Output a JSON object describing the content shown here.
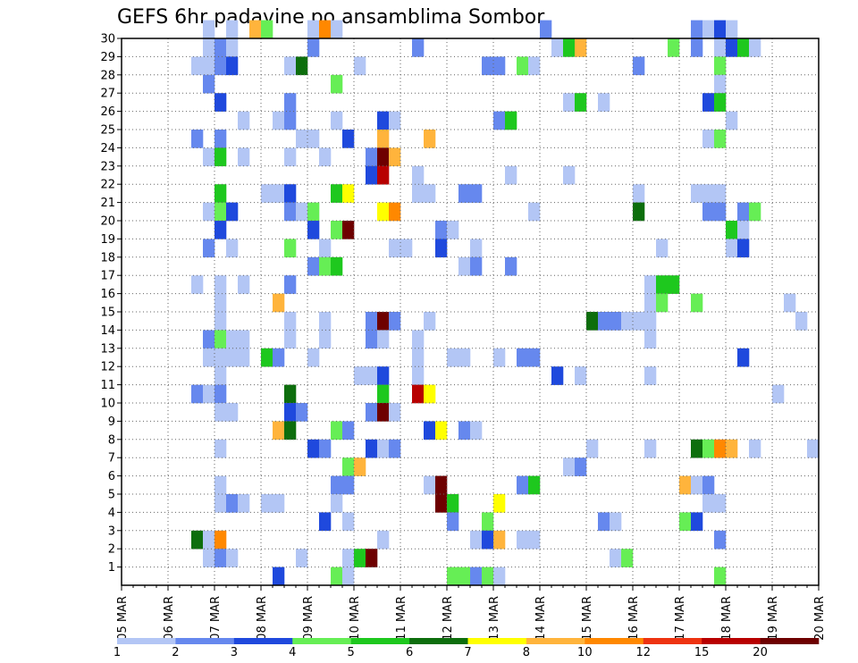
{
  "chart_data": {
    "type": "heatmap",
    "title": "GEFS 6hr padavine po ansamblima Sombor",
    "x_tick_labels": [
      "05 MAR",
      "06 MAR",
      "07 MAR",
      "08 MAR",
      "09 MAR",
      "10 MAR",
      "11 MAR",
      "12 MAR",
      "13 MAR",
      "14 MAR",
      "15 MAR",
      "16 MAR",
      "17 MAR",
      "18 MAR",
      "19 MAR",
      "20 MAR"
    ],
    "y_tick_labels": [
      "1",
      "2",
      "3",
      "4",
      "5",
      "6",
      "7",
      "8",
      "9",
      "10",
      "11",
      "12",
      "13",
      "14",
      "15",
      "16",
      "17",
      "18",
      "19",
      "20",
      "21",
      "22",
      "23",
      "24",
      "25",
      "26",
      "27",
      "28",
      "29",
      "30"
    ],
    "xlim": [
      0,
      60
    ],
    "ylim": [
      0,
      30
    ],
    "grid": true,
    "colorbar": {
      "labels": [
        "1",
        "2",
        "3",
        "4",
        "5",
        "6",
        "7",
        "8",
        "10",
        "12",
        "15",
        "20"
      ],
      "colors": [
        "#b3c6f5",
        "#6688ee",
        "#1f49dd",
        "#66ee55",
        "#1ec81e",
        "#0d6e0d",
        "#ffff00",
        "#ffb43c",
        "#ff8800",
        "#ee3311",
        "#b80000",
        "#6e0000"
      ]
    },
    "cells": [
      [
        7,
        30,
        0
      ],
      [
        9,
        30,
        0
      ],
      [
        11,
        30,
        7
      ],
      [
        12,
        30,
        3
      ],
      [
        16,
        30,
        0
      ],
      [
        17,
        30,
        8
      ],
      [
        18,
        30,
        0
      ],
      [
        36,
        30,
        1
      ],
      [
        49,
        30,
        1
      ],
      [
        50,
        30,
        0
      ],
      [
        51,
        30,
        2
      ],
      [
        52,
        30,
        0
      ],
      [
        7,
        29,
        0
      ],
      [
        8,
        29,
        1
      ],
      [
        9,
        29,
        0
      ],
      [
        16,
        29,
        1
      ],
      [
        25,
        29,
        1
      ],
      [
        37,
        29,
        0
      ],
      [
        38,
        29,
        4
      ],
      [
        39,
        29,
        7
      ],
      [
        47,
        29,
        3
      ],
      [
        49,
        29,
        1
      ],
      [
        51,
        29,
        0
      ],
      [
        52,
        29,
        2
      ],
      [
        53,
        29,
        4
      ],
      [
        54,
        29,
        0
      ],
      [
        6,
        28,
        0
      ],
      [
        7,
        28,
        0
      ],
      [
        8,
        28,
        1
      ],
      [
        9,
        28,
        2
      ],
      [
        14,
        28,
        0
      ],
      [
        15,
        28,
        5
      ],
      [
        20,
        28,
        0
      ],
      [
        31,
        28,
        1
      ],
      [
        32,
        28,
        1
      ],
      [
        34,
        28,
        3
      ],
      [
        35,
        28,
        0
      ],
      [
        44,
        28,
        1
      ],
      [
        51,
        28,
        3
      ],
      [
        7,
        27,
        1
      ],
      [
        18,
        27,
        3
      ],
      [
        51,
        27,
        0
      ],
      [
        8,
        26,
        2
      ],
      [
        14,
        26,
        1
      ],
      [
        38,
        26,
        0
      ],
      [
        39,
        26,
        4
      ],
      [
        41,
        26,
        0
      ],
      [
        50,
        26,
        2
      ],
      [
        51,
        26,
        4
      ],
      [
        10,
        25,
        0
      ],
      [
        13,
        25,
        0
      ],
      [
        14,
        25,
        1
      ],
      [
        18,
        25,
        0
      ],
      [
        22,
        25,
        2
      ],
      [
        23,
        25,
        0
      ],
      [
        32,
        25,
        1
      ],
      [
        33,
        25,
        4
      ],
      [
        52,
        25,
        0
      ],
      [
        6,
        24,
        1
      ],
      [
        8,
        24,
        1
      ],
      [
        15,
        24,
        0
      ],
      [
        16,
        24,
        0
      ],
      [
        19,
        24,
        2
      ],
      [
        22,
        24,
        7
      ],
      [
        26,
        24,
        7
      ],
      [
        50,
        24,
        0
      ],
      [
        51,
        24,
        3
      ],
      [
        7,
        23,
        0
      ],
      [
        8,
        23,
        4
      ],
      [
        10,
        23,
        0
      ],
      [
        14,
        23,
        0
      ],
      [
        17,
        23,
        0
      ],
      [
        21,
        23,
        1
      ],
      [
        22,
        23,
        11
      ],
      [
        23,
        23,
        7
      ],
      [
        21,
        22,
        2
      ],
      [
        22,
        22,
        10
      ],
      [
        25,
        22,
        0
      ],
      [
        33,
        22,
        0
      ],
      [
        38,
        22,
        0
      ],
      [
        8,
        21,
        4
      ],
      [
        12,
        21,
        0
      ],
      [
        13,
        21,
        0
      ],
      [
        14,
        21,
        2
      ],
      [
        18,
        21,
        4
      ],
      [
        19,
        21,
        6
      ],
      [
        25,
        21,
        0
      ],
      [
        26,
        21,
        0
      ],
      [
        29,
        21,
        1
      ],
      [
        30,
        21,
        1
      ],
      [
        44,
        21,
        0
      ],
      [
        49,
        21,
        0
      ],
      [
        50,
        21,
        0
      ],
      [
        51,
        21,
        0
      ],
      [
        7,
        20,
        0
      ],
      [
        8,
        20,
        3
      ],
      [
        9,
        20,
        2
      ],
      [
        14,
        20,
        1
      ],
      [
        15,
        20,
        0
      ],
      [
        16,
        20,
        3
      ],
      [
        22,
        20,
        6
      ],
      [
        23,
        20,
        8
      ],
      [
        35,
        20,
        0
      ],
      [
        44,
        20,
        5
      ],
      [
        50,
        20,
        1
      ],
      [
        51,
        20,
        1
      ],
      [
        53,
        20,
        1
      ],
      [
        54,
        20,
        3
      ],
      [
        8,
        19,
        2
      ],
      [
        16,
        19,
        2
      ],
      [
        18,
        19,
        3
      ],
      [
        19,
        19,
        11
      ],
      [
        27,
        19,
        1
      ],
      [
        28,
        19,
        0
      ],
      [
        52,
        19,
        4
      ],
      [
        53,
        19,
        0
      ],
      [
        7,
        18,
        1
      ],
      [
        9,
        18,
        0
      ],
      [
        14,
        18,
        3
      ],
      [
        17,
        18,
        0
      ],
      [
        23,
        18,
        0
      ],
      [
        24,
        18,
        0
      ],
      [
        27,
        18,
        2
      ],
      [
        30,
        18,
        0
      ],
      [
        46,
        18,
        0
      ],
      [
        52,
        18,
        0
      ],
      [
        53,
        18,
        2
      ],
      [
        16,
        17,
        1
      ],
      [
        17,
        17,
        3
      ],
      [
        18,
        17,
        4
      ],
      [
        29,
        17,
        0
      ],
      [
        30,
        17,
        1
      ],
      [
        33,
        17,
        1
      ],
      [
        6,
        16,
        0
      ],
      [
        8,
        16,
        0
      ],
      [
        10,
        16,
        0
      ],
      [
        14,
        16,
        1
      ],
      [
        45,
        16,
        0
      ],
      [
        46,
        16,
        4
      ],
      [
        47,
        16,
        4
      ],
      [
        8,
        15,
        0
      ],
      [
        13,
        15,
        7
      ],
      [
        45,
        15,
        0
      ],
      [
        46,
        15,
        3
      ],
      [
        49,
        15,
        3
      ],
      [
        57,
        15,
        0
      ],
      [
        8,
        14,
        0
      ],
      [
        14,
        14,
        0
      ],
      [
        17,
        14,
        0
      ],
      [
        21,
        14,
        1
      ],
      [
        22,
        14,
        11
      ],
      [
        23,
        14,
        1
      ],
      [
        26,
        14,
        0
      ],
      [
        40,
        14,
        5
      ],
      [
        41,
        14,
        1
      ],
      [
        42,
        14,
        1
      ],
      [
        43,
        14,
        0
      ],
      [
        44,
        14,
        0
      ],
      [
        45,
        14,
        0
      ],
      [
        58,
        14,
        0
      ],
      [
        7,
        13,
        1
      ],
      [
        8,
        13,
        3
      ],
      [
        9,
        13,
        0
      ],
      [
        10,
        13,
        0
      ],
      [
        14,
        13,
        0
      ],
      [
        17,
        13,
        0
      ],
      [
        21,
        13,
        1
      ],
      [
        22,
        13,
        0
      ],
      [
        25,
        13,
        0
      ],
      [
        45,
        13,
        0
      ],
      [
        7,
        12,
        0
      ],
      [
        8,
        12,
        0
      ],
      [
        9,
        12,
        0
      ],
      [
        10,
        12,
        0
      ],
      [
        12,
        12,
        4
      ],
      [
        13,
        12,
        1
      ],
      [
        16,
        12,
        0
      ],
      [
        25,
        12,
        0
      ],
      [
        28,
        12,
        0
      ],
      [
        29,
        12,
        0
      ],
      [
        32,
        12,
        0
      ],
      [
        34,
        12,
        1
      ],
      [
        35,
        12,
        1
      ],
      [
        53,
        12,
        2
      ],
      [
        8,
        11,
        0
      ],
      [
        20,
        11,
        0
      ],
      [
        21,
        11,
        0
      ],
      [
        22,
        11,
        2
      ],
      [
        25,
        11,
        0
      ],
      [
        37,
        11,
        2
      ],
      [
        39,
        11,
        0
      ],
      [
        45,
        11,
        0
      ],
      [
        6,
        10,
        1
      ],
      [
        7,
        10,
        0
      ],
      [
        8,
        10,
        1
      ],
      [
        14,
        10,
        5
      ],
      [
        22,
        10,
        4
      ],
      [
        25,
        10,
        10
      ],
      [
        26,
        10,
        6
      ],
      [
        56,
        10,
        0
      ],
      [
        8,
        9,
        0
      ],
      [
        9,
        9,
        0
      ],
      [
        14,
        9,
        2
      ],
      [
        15,
        9,
        1
      ],
      [
        21,
        9,
        1
      ],
      [
        22,
        9,
        11
      ],
      [
        23,
        9,
        0
      ],
      [
        13,
        8,
        7
      ],
      [
        14,
        8,
        5
      ],
      [
        18,
        8,
        3
      ],
      [
        19,
        8,
        1
      ],
      [
        26,
        8,
        2
      ],
      [
        27,
        8,
        6
      ],
      [
        29,
        8,
        1
      ],
      [
        30,
        8,
        0
      ],
      [
        8,
        7,
        0
      ],
      [
        16,
        7,
        2
      ],
      [
        17,
        7,
        1
      ],
      [
        21,
        7,
        2
      ],
      [
        22,
        7,
        0
      ],
      [
        23,
        7,
        1
      ],
      [
        40,
        7,
        0
      ],
      [
        45,
        7,
        0
      ],
      [
        49,
        7,
        5
      ],
      [
        50,
        7,
        3
      ],
      [
        51,
        7,
        8
      ],
      [
        52,
        7,
        7
      ],
      [
        54,
        7,
        0
      ],
      [
        59,
        7,
        0
      ],
      [
        19,
        6,
        3
      ],
      [
        20,
        6,
        7
      ],
      [
        38,
        6,
        0
      ],
      [
        39,
        6,
        1
      ],
      [
        8,
        5,
        0
      ],
      [
        18,
        5,
        1
      ],
      [
        19,
        5,
        1
      ],
      [
        26,
        5,
        0
      ],
      [
        27,
        5,
        11
      ],
      [
        34,
        5,
        1
      ],
      [
        35,
        5,
        4
      ],
      [
        48,
        5,
        7
      ],
      [
        49,
        5,
        0
      ],
      [
        50,
        5,
        1
      ],
      [
        8,
        4,
        0
      ],
      [
        9,
        4,
        1
      ],
      [
        10,
        4,
        0
      ],
      [
        12,
        4,
        0
      ],
      [
        13,
        4,
        0
      ],
      [
        18,
        4,
        0
      ],
      [
        27,
        4,
        11
      ],
      [
        28,
        4,
        4
      ],
      [
        32,
        4,
        6
      ],
      [
        50,
        4,
        0
      ],
      [
        51,
        4,
        0
      ],
      [
        17,
        3,
        2
      ],
      [
        19,
        3,
        0
      ],
      [
        28,
        3,
        1
      ],
      [
        31,
        3,
        3
      ],
      [
        41,
        3,
        1
      ],
      [
        42,
        3,
        0
      ],
      [
        48,
        3,
        3
      ],
      [
        49,
        3,
        2
      ],
      [
        6,
        2,
        5
      ],
      [
        7,
        2,
        0
      ],
      [
        8,
        2,
        8
      ],
      [
        22,
        2,
        0
      ],
      [
        30,
        2,
        0
      ],
      [
        31,
        2,
        2
      ],
      [
        32,
        2,
        7
      ],
      [
        34,
        2,
        0
      ],
      [
        35,
        2,
        0
      ],
      [
        51,
        2,
        1
      ],
      [
        7,
        1,
        0
      ],
      [
        8,
        1,
        1
      ],
      [
        9,
        1,
        0
      ],
      [
        15,
        1,
        0
      ],
      [
        19,
        1,
        0
      ],
      [
        20,
        1,
        4
      ],
      [
        21,
        1,
        11
      ],
      [
        42,
        1,
        0
      ],
      [
        43,
        1,
        3
      ],
      [
        13,
        0,
        2
      ],
      [
        18,
        0,
        3
      ],
      [
        19,
        0,
        0
      ],
      [
        28,
        0,
        3
      ],
      [
        29,
        0,
        3
      ],
      [
        30,
        0,
        1
      ],
      [
        31,
        0,
        3
      ],
      [
        32,
        0,
        0
      ],
      [
        51,
        0,
        3
      ]
    ]
  }
}
